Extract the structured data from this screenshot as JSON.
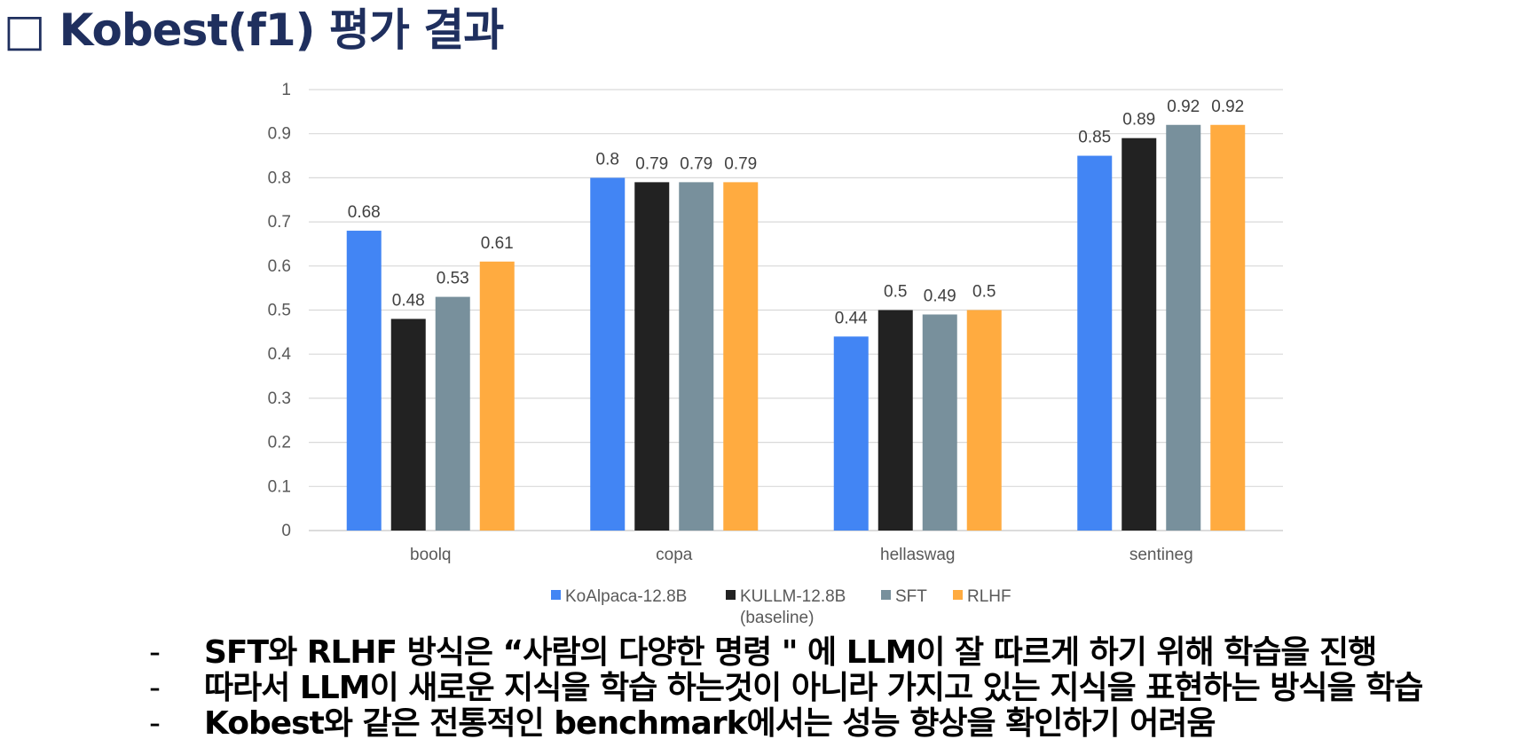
{
  "title": "□ Kobest(f1) 평가 결과",
  "chart_data": {
    "type": "bar",
    "categories": [
      "boolq",
      "copa",
      "hellaswag",
      "sentineg"
    ],
    "series": [
      {
        "name": "KoAlpaca-12.8B",
        "color": "#4285f4",
        "values": [
          0.68,
          0.8,
          0.44,
          0.85
        ]
      },
      {
        "name": "KULLM-12.8B (baseline)",
        "color": "#222222",
        "values": [
          0.48,
          0.79,
          0.5,
          0.89
        ]
      },
      {
        "name": "SFT",
        "color": "#78909c",
        "values": [
          0.53,
          0.79,
          0.49,
          0.92
        ]
      },
      {
        "name": "RLHF",
        "color": "#ffab40",
        "values": [
          0.61,
          0.79,
          0.5,
          0.92
        ]
      }
    ],
    "yticks": [
      "0",
      "0.1",
      "0.2",
      "0.3",
      "0.4",
      "0.5",
      "0.6",
      "0.7",
      "0.8",
      "0.9",
      "1"
    ],
    "ylim": [
      0,
      1
    ],
    "grid": true,
    "legend": "bottom",
    "data_labels": true
  },
  "bullets": [
    "SFT와 RLHF 방식은 “사람의 다양한 명령 \" 에 LLM이 잘 따르게 하기 위해 학습을 진행",
    "따라서 LLM이 새로운 지식을 학습 하는것이 아니라 가지고 있는 지식을 표현하는 방식을 학습",
    "Kobest와 같은 전통적인 benchmark에서는 성능 향상을 확인하기 어려움"
  ]
}
